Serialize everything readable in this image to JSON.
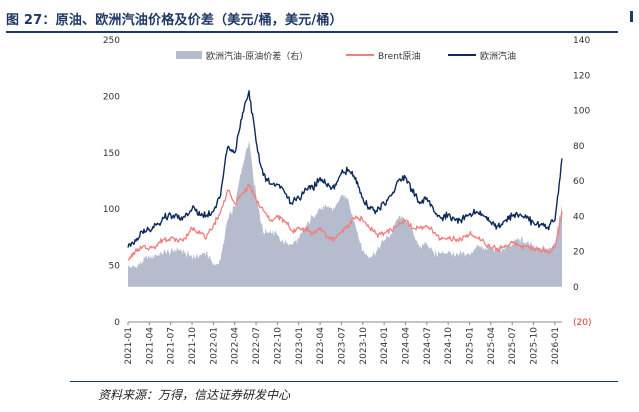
{
  "figure": {
    "title": "图 27：原油、欧洲汽油价格及价差（美元/桶，美元/桶）",
    "source": "资料来源：万得，信达证券研发中心"
  },
  "chart_data": {
    "type": "line",
    "title": "原油、欧洲汽油价格及价差",
    "x_ticks": [
      "2021-01",
      "2021-04",
      "2021-07",
      "2021-10",
      "2022-01",
      "2022-04",
      "2022-07",
      "2022-10",
      "2023-01",
      "2023-04",
      "2023-07",
      "2023-10",
      "2024-01",
      "2024-04",
      "2024-07",
      "2024-10",
      "2025-01",
      "2025-04",
      "2025-07",
      "2025-10",
      "2026-01"
    ],
    "y_left": {
      "min": 0,
      "max": 250,
      "ticks": [
        0,
        50,
        100,
        150,
        200,
        250
      ]
    },
    "y_right": {
      "min": -20,
      "max": 140,
      "ticks": [
        -20,
        0,
        20,
        40,
        60,
        80,
        100,
        120,
        140
      ],
      "tick_labels": [
        "(20)",
        "0",
        "20",
        "40",
        "60",
        "80",
        "100",
        "120",
        "140"
      ]
    },
    "legend": [
      "欧洲汽油-原油价差（右）",
      "Brent原油",
      "欧洲汽油"
    ],
    "monthly_x": [
      "2021-01",
      "2021-02",
      "2021-03",
      "2021-04",
      "2021-05",
      "2021-06",
      "2021-07",
      "2021-08",
      "2021-09",
      "2021-10",
      "2021-11",
      "2021-12",
      "2022-01",
      "2022-02",
      "2022-03",
      "2022-04",
      "2022-05",
      "2022-06",
      "2022-07",
      "2022-08",
      "2022-09",
      "2022-10",
      "2022-11",
      "2022-12",
      "2023-01",
      "2023-02",
      "2023-03",
      "2023-04",
      "2023-05",
      "2023-06",
      "2023-07",
      "2023-08",
      "2023-09",
      "2023-10",
      "2023-11",
      "2023-12",
      "2024-01",
      "2024-02",
      "2024-03",
      "2024-04",
      "2024-05",
      "2024-06",
      "2024-07",
      "2024-08",
      "2024-09",
      "2024-10",
      "2024-11",
      "2024-12",
      "2025-01",
      "2025-02",
      "2025-03",
      "2025-04",
      "2025-05",
      "2025-06",
      "2025-07",
      "2025-08",
      "2025-09",
      "2025-10",
      "2025-11",
      "2025-12",
      "2026-01",
      "2026-02"
    ],
    "series": [
      {
        "name": "Brent原油",
        "axis": "left",
        "color": "#f08080",
        "values": [
          55,
          62,
          66,
          65,
          68,
          73,
          75,
          71,
          74,
          83,
          81,
          74,
          86,
          97,
          117,
          105,
          113,
          122,
          108,
          99,
          90,
          93,
          90,
          81,
          83,
          83,
          78,
          84,
          75,
          74,
          80,
          86,
          94,
          90,
          83,
          78,
          79,
          82,
          86,
          90,
          83,
          83,
          85,
          79,
          73,
          75,
          73,
          73,
          78,
          75,
          72,
          66,
          64,
          68,
          70,
          68,
          67,
          64,
          64,
          62,
          66,
          98
        ]
      },
      {
        "name": "欧洲汽油",
        "axis": "left",
        "color": "#0d2a5c",
        "values": [
          66,
          73,
          80,
          82,
          86,
          92,
          95,
          92,
          93,
          100,
          98,
          94,
          98,
          112,
          155,
          150,
          180,
          205,
          160,
          130,
          122,
          122,
          115,
          105,
          110,
          118,
          118,
          128,
          120,
          118,
          132,
          135,
          128,
          110,
          100,
          98,
          105,
          112,
          125,
          128,
          115,
          105,
          110,
          98,
          92,
          95,
          90,
          92,
          96,
          98,
          94,
          88,
          85,
          90,
          94,
          95,
          92,
          88,
          86,
          84,
          90,
          145
        ]
      },
      {
        "name": "欧洲汽油-原油价差（右）",
        "axis": "right",
        "color": "#b4bccd",
        "values": [
          11,
          11,
          14,
          17,
          18,
          19,
          20,
          21,
          19,
          17,
          17,
          20,
          12,
          15,
          38,
          45,
          67,
          83,
          52,
          31,
          32,
          29,
          25,
          24,
          27,
          35,
          40,
          44,
          45,
          44,
          52,
          49,
          34,
          20,
          17,
          20,
          26,
          30,
          39,
          38,
          32,
          22,
          25,
          19,
          19,
          20,
          17,
          19,
          18,
          23,
          22,
          22,
          21,
          22,
          24,
          27,
          25,
          24,
          22,
          22,
          24,
          47
        ]
      }
    ]
  }
}
